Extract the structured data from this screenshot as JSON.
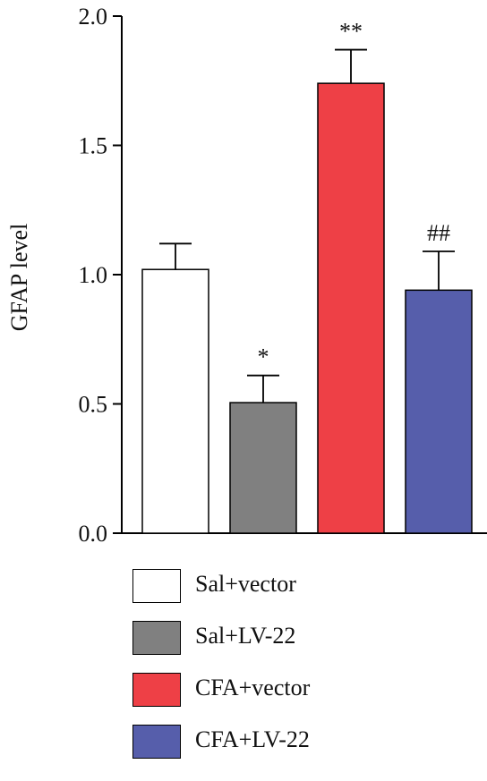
{
  "chart_data": {
    "type": "bar",
    "categories": [
      "Sal+vector",
      "Sal+LV-22",
      "CFA+vector",
      "CFA+LV-22"
    ],
    "values": [
      1.02,
      0.505,
      1.74,
      0.94
    ],
    "errors": [
      0.1,
      0.105,
      0.13,
      0.15
    ],
    "annotations": [
      "",
      "*",
      "**",
      "##"
    ],
    "colors": [
      "#ffffff",
      "#808080",
      "#ee4046",
      "#565eab"
    ],
    "ylabel": "GFAP level",
    "xlabel": "",
    "ylim": [
      0,
      2.0
    ],
    "yticks": [
      0.0,
      0.5,
      1.0,
      1.5,
      2.0
    ],
    "ytick_labels": [
      "0.0",
      "0.5",
      "1.0",
      "1.5",
      "2.0"
    ],
    "legend_position": "bottom",
    "grid": false
  }
}
